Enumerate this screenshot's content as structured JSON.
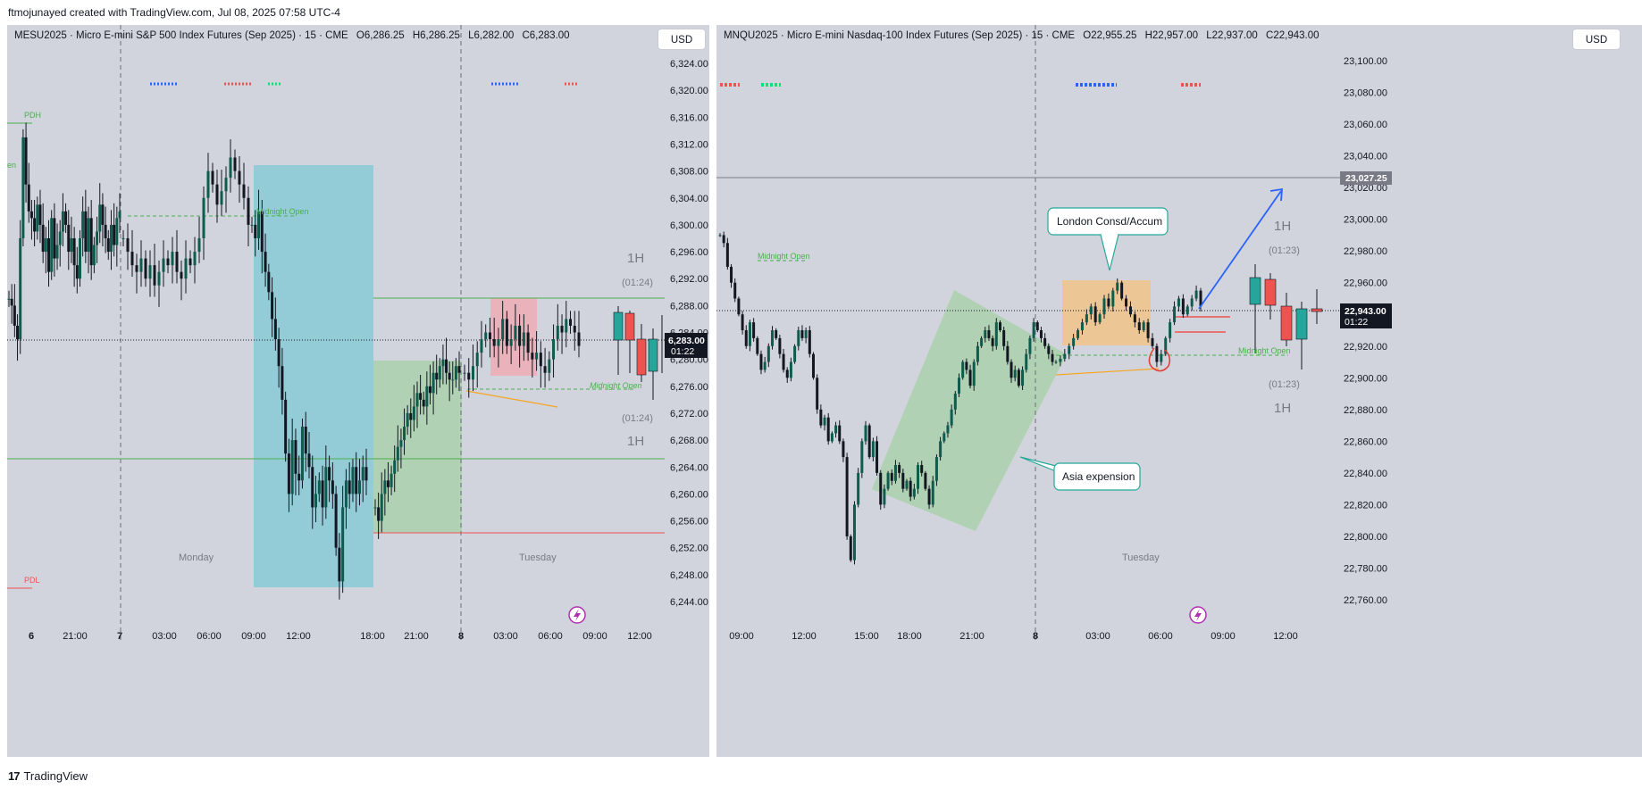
{
  "header": {
    "attribution": "ftmojunayed created with TradingView.com, Jul 08, 2025 07:58 UTC-4"
  },
  "footer": {
    "brand": "TradingView"
  },
  "colors": {
    "bull": "#26a69a",
    "bull_dark": "#0e4a3f",
    "bear": "#ef5350",
    "blue_box": "#7ec9d6",
    "green_box": "#a8cfa9",
    "orange_box": "#f2c38a",
    "pink_box": "#f0aab3"
  },
  "panels": [
    {
      "legend": {
        "symbol": "MESU2025 · Micro E-mini S&P 500 Index Futures (Sep 2025) · 15 · CME",
        "o": "O6,286.25",
        "h": "H6,286.25",
        "l": "L6,282.00",
        "c": "C6,283.00"
      },
      "currency": "USD",
      "price_label": "6,283.00",
      "countdown": "01:22",
      "labels": {
        "pdh": "PDH",
        "pdl": "PDL",
        "midnight_open": "Midnight Open",
        "monday": "Monday",
        "tuesday": "Tuesday",
        "tf_top": "1H",
        "tf_bottom": "1H",
        "t_top": "(01:24)",
        "t_bottom": "(01:24)"
      }
    },
    {
      "legend": {
        "symbol": "MNQU2025 · Micro E-mini Nasdaq-100 Index Futures (Sep 2025) · 15 · CME",
        "o": "O22,955.25",
        "h": "H22,957.00",
        "l": "L22,937.00",
        "c": "C22,943.00"
      },
      "currency": "USD",
      "price_label": "22,943.00",
      "countdown": "01:22",
      "level_label": "23,027.25",
      "labels": {
        "midnight_open": "Midnight Open",
        "tuesday": "Tuesday",
        "tf_top": "1H",
        "tf_bottom": "1H",
        "t_top": "(01:23)",
        "t_bottom": "(01:23)",
        "london": "London Consd/Accum",
        "asia": "Asia expension"
      }
    }
  ],
  "chart_data": [
    {
      "type": "candlestick",
      "title": "MESU2025 · Micro E-mini S&P 500 Index Futures (Sep 2025) · 15 · CME",
      "ohlc_last": {
        "open": 6286.25,
        "high": 6286.25,
        "low": 6282.0,
        "close": 6283.0
      },
      "yticks": [
        "6,324.00",
        "6,320.00",
        "6,316.00",
        "6,312.00",
        "6,308.00",
        "6,304.00",
        "6,300.00",
        "6,296.00",
        "6,292.00",
        "6,288.00",
        "6,284.00",
        "6,280.00",
        "6,276.00",
        "6,272.00",
        "6,268.00",
        "6,264.00",
        "6,260.00",
        "6,256.00",
        "6,252.00",
        "6,248.00",
        "6,244.00"
      ],
      "xticks": [
        "6",
        "21:00",
        "7",
        "03:00",
        "06:00",
        "09:00",
        "12:00",
        "18:00",
        "21:00",
        "8",
        "03:00",
        "06:00",
        "09:00",
        "12:00"
      ],
      "ylim": [
        6242,
        6330
      ],
      "levels": {
        "pdh": 6315,
        "pdl": 6246,
        "midnight_open": 6301.5,
        "midnight_open_tue": 6276,
        "green_hi": 6289,
        "green_lo": 6265,
        "red_line": 6254.5
      },
      "current_price": 6283.0,
      "series": [
        {
          "name": "asia_mon",
          "points": [
            6289,
            6288,
            6285,
            6283,
            6298,
            6313,
            6306,
            6302,
            6301,
            6299,
            6303,
            6300,
            6296,
            6298,
            6293,
            6301,
            6295,
            6297,
            6299,
            6302,
            6300,
            6296,
            6298,
            6294,
            6292,
            6298,
            6302,
            6296,
            6301,
            6294,
            6297,
            6299,
            6303,
            6300,
            6298,
            6296,
            6300,
            6297,
            6301,
            6302
          ]
        },
        {
          "name": "mon_mid",
          "points": [
            6298,
            6296,
            6294,
            6293,
            6295,
            6292,
            6294,
            6291,
            6293,
            6295,
            6294,
            6296,
            6293,
            6292,
            6295,
            6294,
            6296,
            6298,
            6304,
            6308,
            6306,
            6303,
            6305,
            6307,
            6310,
            6308,
            6306,
            6304,
            6300
          ]
        },
        {
          "name": "mon_drop",
          "points": [
            6300,
            6298,
            6302,
            6296,
            6293,
            6290,
            6286,
            6283,
            6279,
            6274,
            6266,
            6260,
            6268,
            6263,
            6262,
            6270,
            6266,
            6264,
            6258,
            6260,
            6262,
            6258,
            6264,
            6262,
            6260,
            6252,
            6247,
            6258,
            6262,
            6260,
            6264,
            6260,
            6262,
            6264,
            6262
          ]
        },
        {
          "name": "mon_recover",
          "points": [
            6258,
            6256,
            6260,
            6262,
            6261,
            6263,
            6265,
            6267,
            6268,
            6270,
            6272,
            6271,
            6273,
            6275,
            6274,
            6273,
            6276,
            6275,
            6278,
            6277,
            6279,
            6280,
            6278,
            6277,
            6277,
            6279,
            6278
          ]
        },
        {
          "name": "tue",
          "points": [
            6278,
            6277,
            6279,
            6281,
            6283,
            6284,
            6283,
            6282,
            6283,
            6286,
            6282,
            6283,
            6285,
            6282,
            6284,
            6281,
            6280,
            6281,
            6279,
            6278,
            6280,
            6283,
            6285,
            6284,
            6286,
            6285,
            6284,
            6282
          ]
        },
        {
          "name": "1h_candles",
          "points": [
            6284,
            6287,
            6283,
            6281,
            6284
          ]
        }
      ]
    },
    {
      "type": "candlestick",
      "title": "MNQU2025 · Micro E-mini Nasdaq-100 Index Futures (Sep 2025) · 15 · CME",
      "ohlc_last": {
        "open": 22955.25,
        "high": 22957.0,
        "low": 22937.0,
        "close": 22943.0
      },
      "yticks": [
        "23,100.00",
        "23,080.00",
        "23,060.00",
        "23,040.00",
        "23,020.00",
        "23,000.00",
        "22,980.00",
        "22,960.00",
        "22,940.00",
        "22,920.00",
        "22,900.00",
        "22,880.00",
        "22,860.00",
        "22,840.00",
        "22,820.00",
        "22,800.00",
        "22,780.00",
        "22,760.00"
      ],
      "xticks": [
        "09:00",
        "12:00",
        "15:00",
        "18:00",
        "21:00",
        "8",
        "03:00",
        "06:00",
        "09:00",
        "12:00"
      ],
      "ylim": [
        22748,
        23108
      ],
      "levels": {
        "upper_line": 23027.25,
        "midnight_open": 22975,
        "midnight_open_tue": 22916
      },
      "current_price": 22943.0,
      "series": [
        {
          "name": "mon",
          "points": [
            22990,
            22985,
            22970,
            22960,
            22950,
            22940,
            22930,
            22920,
            22935,
            22925,
            22915,
            22905,
            22910,
            22920,
            22930,
            22925,
            22915,
            22905,
            22900,
            22910,
            22920,
            22930,
            22925,
            22930,
            22915,
            22900,
            22880,
            22870,
            22875,
            22860,
            22865,
            22870,
            22860,
            22850,
            22800,
            22785,
            22820,
            22840,
            22860,
            22870,
            22850,
            22860,
            22840,
            22820,
            22830,
            22840,
            22835,
            22845,
            22840,
            22830,
            22835,
            22825,
            22830,
            22845,
            22840,
            22830,
            22820,
            22835,
            22850,
            22860,
            22865,
            22870,
            22880,
            22890,
            22900,
            22910,
            22905,
            22895,
            22910,
            22920,
            22925,
            22930,
            22925,
            22920,
            22935,
            22930,
            22920,
            22910,
            22900,
            22905,
            22895,
            22905,
            22915,
            22925,
            22935,
            22930,
            22925,
            22920,
            22915,
            22910
          ]
        },
        {
          "name": "tue",
          "points": [
            22910,
            22912,
            22915,
            22920,
            22925,
            22930,
            22935,
            22940,
            22945,
            22935,
            22940,
            22950,
            22945,
            22955,
            22960,
            22950,
            22945,
            22940,
            22935,
            22930,
            22935,
            22925,
            22920,
            22910,
            22915,
            22925,
            22935,
            22945,
            22950,
            22940,
            22945,
            22950,
            22955,
            22945
          ]
        },
        {
          "name": "1h_candles",
          "points": [
            22945,
            22955,
            22950,
            22932,
            22940,
            22945
          ]
        }
      ]
    }
  ]
}
